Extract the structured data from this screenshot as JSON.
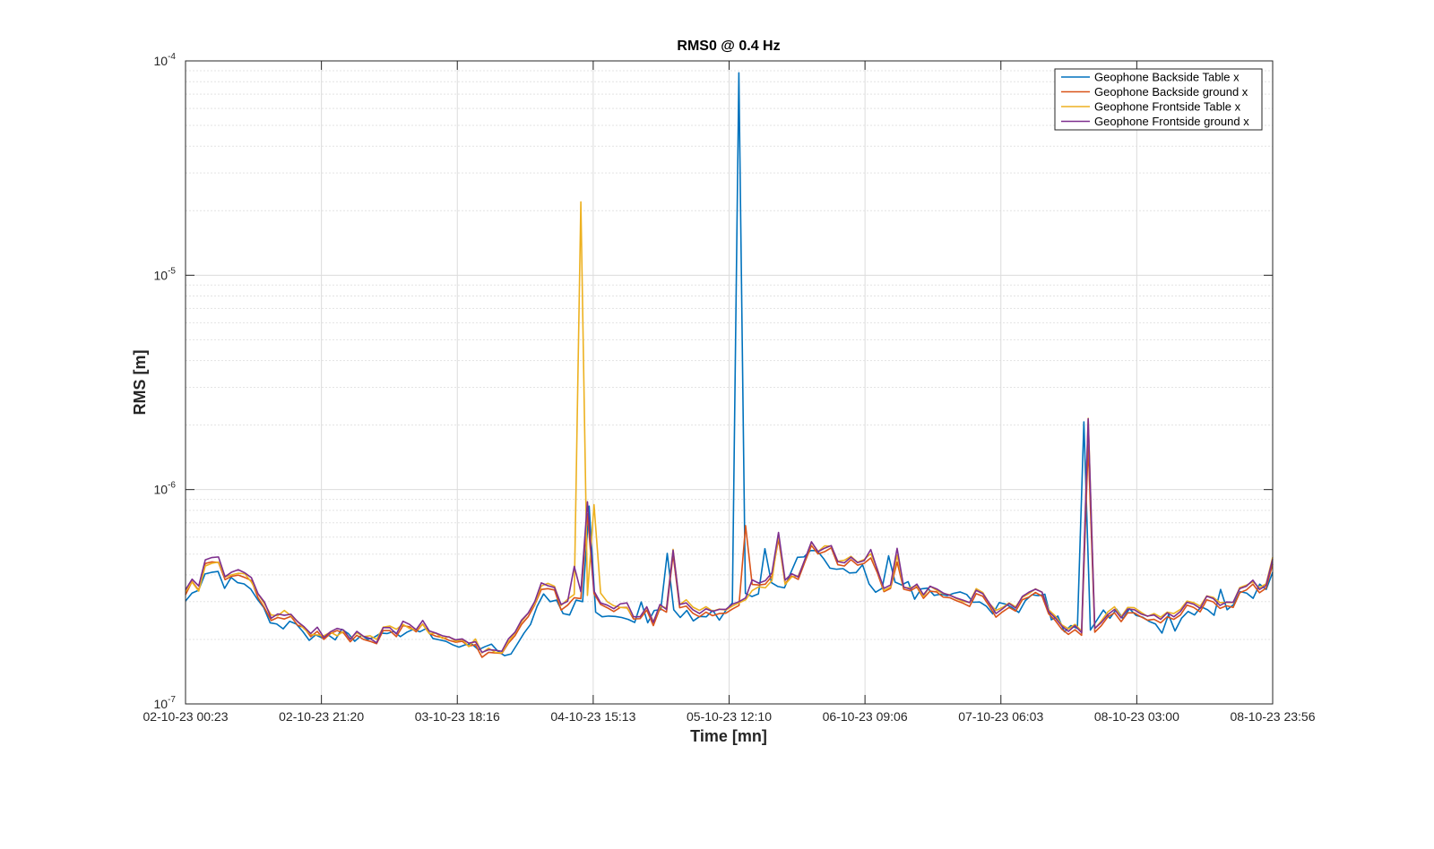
{
  "chart_data": {
    "type": "line",
    "title": "RMS0 @ 0.4 Hz",
    "xlabel": "Time [mn]",
    "ylabel": "RMS [m]",
    "yscale": "log",
    "ylim": [
      1e-07,
      0.0001
    ],
    "ytick_labels": [
      {
        "value": 1e-07,
        "base": "10",
        "exp": "-7"
      },
      {
        "value": 1e-06,
        "base": "10",
        "exp": "-6"
      },
      {
        "value": 1e-05,
        "base": "10",
        "exp": "-5"
      },
      {
        "value": 0.0001,
        "base": "10",
        "exp": "-4"
      }
    ],
    "xlim": [
      "02-10-23 00:23",
      "08-10-23 23:56"
    ],
    "xtick_labels": [
      "02-10-23 00:23",
      "02-10-23 21:20",
      "03-10-23 18:16",
      "04-10-23 15:13",
      "05-10-23 12:10",
      "06-10-23 09:06",
      "07-10-23 06:03",
      "08-10-23 03:00",
      "08-10-23 23:56"
    ],
    "sample_count": 200,
    "grid": true,
    "minor_grid": true,
    "legend_position": "top-right",
    "series": [
      {
        "name": "Geophone Backside Table x",
        "color": "#0072BD",
        "values_e7": [
          3.02,
          3.29,
          3.39,
          4.04,
          4.11,
          4.15,
          3.46,
          3.89,
          3.68,
          3.63,
          3.44,
          3.09,
          2.82,
          2.39,
          2.36,
          2.24,
          2.43,
          2.36,
          2.18,
          1.98,
          2.1,
          2.03,
          2.09,
          1.99,
          2.23,
          2.13,
          1.96,
          2.09,
          2.0,
          2.05,
          2.14,
          2.13,
          2.18,
          2.06,
          2.16,
          2.23,
          2.17,
          2.25,
          2.02,
          1.99,
          1.96,
          1.89,
          1.84,
          1.89,
          1.9,
          1.79,
          1.85,
          1.9,
          1.76,
          1.68,
          1.71,
          1.91,
          2.14,
          2.35,
          2.85,
          3.26,
          3.0,
          3.05,
          2.64,
          2.6,
          3.05,
          3.0,
          8.37,
          2.68,
          2.55,
          2.57,
          2.56,
          2.53,
          2.48,
          2.4,
          2.99,
          2.39,
          2.73,
          2.75,
          5.04,
          2.75,
          2.53,
          2.73,
          2.44,
          2.56,
          2.55,
          2.73,
          2.46,
          2.73,
          2.96,
          880.0,
          3.28,
          3.17,
          3.26,
          5.3,
          3.68,
          3.53,
          3.48,
          4.11,
          4.83,
          4.85,
          5.19,
          5.2,
          4.77,
          4.3,
          4.25,
          4.28,
          4.08,
          4.1,
          4.46,
          3.63,
          3.32,
          3.46,
          4.91,
          3.7,
          3.59,
          3.72,
          3.08,
          3.44,
          3.47,
          3.21,
          3.25,
          3.2,
          3.28,
          3.33,
          3.24,
          2.98,
          2.99,
          2.86,
          2.63,
          2.97,
          2.92,
          2.81,
          2.67,
          3.03,
          3.23,
          3.2,
          3.25,
          2.47,
          2.57,
          2.17,
          2.32,
          2.25,
          20.7,
          2.21,
          2.46,
          2.74,
          2.51,
          2.77,
          2.5,
          2.78,
          2.59,
          2.54,
          2.43,
          2.36,
          2.14,
          2.61,
          2.19,
          2.51,
          2.7,
          2.6,
          2.84,
          2.75,
          2.59,
          3.42,
          2.75,
          2.91,
          3.34,
          3.29,
          3.11,
          3.62,
          3.42,
          4.11
        ],
        "values_e6_note": ""
      },
      {
        "name": "Geophone Backside ground x",
        "color": "#D95319",
        "values_e7": [
          3.23,
          3.73,
          3.39,
          4.52,
          4.6,
          4.57,
          3.8,
          3.94,
          3.99,
          3.89,
          3.76,
          3.13,
          2.8,
          2.45,
          2.53,
          2.49,
          2.56,
          2.33,
          2.27,
          2.06,
          2.18,
          2.0,
          2.13,
          2.2,
          2.14,
          1.95,
          2.09,
          2.0,
          1.96,
          1.91,
          2.2,
          2.2,
          2.06,
          2.32,
          2.29,
          2.17,
          2.36,
          2.13,
          2.07,
          2.04,
          1.98,
          1.94,
          1.96,
          1.86,
          1.89,
          1.65,
          1.74,
          1.73,
          1.72,
          1.92,
          2.08,
          2.35,
          2.55,
          2.9,
          3.42,
          3.45,
          3.4,
          2.74,
          2.89,
          3.13,
          3.1,
          7.71,
          3.27,
          2.91,
          2.81,
          2.7,
          2.82,
          2.82,
          2.49,
          2.5,
          2.74,
          2.32,
          2.79,
          2.68,
          4.98,
          2.81,
          2.86,
          2.65,
          2.55,
          2.68,
          2.58,
          2.64,
          2.65,
          2.77,
          2.88,
          6.79,
          3.61,
          3.59,
          3.62,
          3.95,
          5.88,
          3.64,
          3.95,
          3.81,
          4.59,
          5.48,
          5.01,
          5.13,
          5.35,
          4.46,
          4.4,
          4.71,
          4.44,
          4.53,
          4.8,
          4.09,
          3.34,
          3.46,
          4.59,
          3.43,
          3.37,
          3.51,
          3.11,
          3.36,
          3.33,
          3.15,
          3.13,
          3.03,
          2.95,
          2.85,
          3.27,
          3.18,
          2.86,
          2.54,
          2.69,
          2.82,
          2.71,
          3.06,
          3.15,
          3.31,
          3.18,
          2.63,
          2.45,
          2.23,
          2.11,
          2.22,
          2.09,
          16.2,
          2.16,
          2.32,
          2.55,
          2.66,
          2.42,
          2.66,
          2.66,
          2.55,
          2.46,
          2.48,
          2.39,
          2.55,
          2.48,
          2.6,
          2.89,
          2.82,
          2.69,
          3.06,
          2.99,
          2.79,
          2.87,
          2.82,
          3.3,
          3.4,
          3.62,
          3.3,
          3.47,
          4.49
        ],
        "values_e6_note": ""
      },
      {
        "name": "Geophone Frontside Table x",
        "color": "#EDB120",
        "values_e7": [
          3.34,
          3.7,
          3.36,
          4.4,
          4.53,
          4.59,
          3.91,
          4.0,
          4.07,
          4.05,
          3.7,
          3.26,
          2.92,
          2.6,
          2.58,
          2.73,
          2.58,
          2.43,
          2.24,
          2.11,
          2.1,
          2.08,
          2.16,
          2.08,
          2.18,
          2.02,
          2.15,
          2.06,
          2.08,
          2.0,
          2.28,
          2.31,
          2.23,
          2.35,
          2.25,
          2.21,
          2.35,
          2.13,
          2.14,
          2.02,
          2.06,
          1.96,
          2.0,
          1.85,
          2.01,
          1.73,
          1.82,
          1.74,
          1.73,
          1.95,
          2.14,
          2.42,
          2.65,
          2.93,
          3.55,
          3.65,
          3.54,
          2.88,
          3.08,
          3.24,
          220.0,
          3.21,
          8.5,
          3.29,
          3.0,
          2.87,
          2.82,
          2.8,
          2.55,
          2.55,
          2.83,
          2.42,
          2.85,
          2.81,
          5.26,
          2.91,
          3.06,
          2.83,
          2.73,
          2.84,
          2.71,
          2.77,
          2.74,
          2.86,
          2.96,
          3.06,
          3.38,
          3.52,
          3.48,
          3.76,
          6.16,
          3.61,
          3.91,
          3.96,
          4.69,
          5.68,
          5.14,
          5.46,
          5.45,
          4.63,
          4.68,
          4.88,
          4.58,
          4.72,
          5.02,
          4.26,
          3.38,
          3.51,
          4.94,
          3.49,
          3.48,
          3.57,
          3.17,
          3.54,
          3.39,
          3.27,
          3.23,
          3.1,
          3.01,
          2.97,
          3.45,
          3.31,
          2.94,
          2.73,
          2.82,
          2.96,
          2.84,
          3.14,
          3.27,
          3.44,
          3.32,
          2.75,
          2.57,
          2.34,
          2.24,
          2.35,
          2.19,
          21.5,
          2.24,
          2.44,
          2.69,
          2.84,
          2.55,
          2.82,
          2.81,
          2.68,
          2.56,
          2.64,
          2.54,
          2.68,
          2.64,
          2.76,
          3.02,
          2.97,
          2.86,
          3.19,
          3.14,
          2.97,
          2.97,
          2.97,
          3.49,
          3.58,
          3.71,
          3.49,
          3.63,
          4.83
        ],
        "values_e6_note": ""
      },
      {
        "name": "Geophone Frontside ground x",
        "color": "#7E2F8E",
        "values_e7": [
          3.41,
          3.82,
          3.55,
          4.7,
          4.82,
          4.85,
          3.92,
          4.12,
          4.23,
          4.09,
          3.88,
          3.27,
          2.98,
          2.51,
          2.63,
          2.59,
          2.62,
          2.42,
          2.29,
          2.13,
          2.28,
          2.04,
          2.17,
          2.25,
          2.21,
          2.0,
          2.18,
          2.07,
          2.02,
          1.93,
          2.27,
          2.27,
          2.12,
          2.43,
          2.35,
          2.22,
          2.45,
          2.19,
          2.14,
          2.08,
          2.05,
          1.99,
          2.01,
          1.92,
          1.95,
          1.74,
          1.79,
          1.78,
          1.76,
          2.01,
          2.16,
          2.46,
          2.65,
          3.0,
          3.67,
          3.56,
          3.49,
          2.91,
          3.01,
          4.38,
          3.34,
          8.77,
          3.36,
          2.96,
          2.89,
          2.78,
          2.93,
          2.96,
          2.55,
          2.55,
          2.84,
          2.4,
          2.91,
          2.76,
          5.21,
          2.91,
          2.96,
          2.75,
          2.64,
          2.78,
          2.7,
          2.76,
          2.76,
          2.92,
          3.0,
          3.12,
          3.79,
          3.66,
          3.76,
          4.09,
          6.31,
          3.78,
          4.05,
          3.91,
          4.72,
          5.71,
          5.13,
          5.33,
          5.48,
          4.61,
          4.55,
          4.84,
          4.56,
          4.66,
          5.25,
          4.23,
          3.46,
          3.59,
          5.32,
          3.51,
          3.43,
          3.62,
          3.23,
          3.54,
          3.44,
          3.29,
          3.21,
          3.12,
          3.05,
          2.97,
          3.39,
          3.27,
          2.95,
          2.64,
          2.78,
          2.94,
          2.8,
          3.17,
          3.32,
          3.43,
          3.32,
          2.7,
          2.52,
          2.31,
          2.18,
          2.32,
          2.15,
          21.4,
          2.25,
          2.4,
          2.61,
          2.76,
          2.52,
          2.77,
          2.75,
          2.63,
          2.57,
          2.6,
          2.48,
          2.66,
          2.55,
          2.7,
          2.98,
          2.92,
          2.79,
          3.18,
          3.1,
          2.88,
          2.99,
          2.98,
          3.45,
          3.54,
          3.78,
          3.42,
          3.57,
          4.74
        ],
        "values_e6_note": ""
      }
    ]
  }
}
